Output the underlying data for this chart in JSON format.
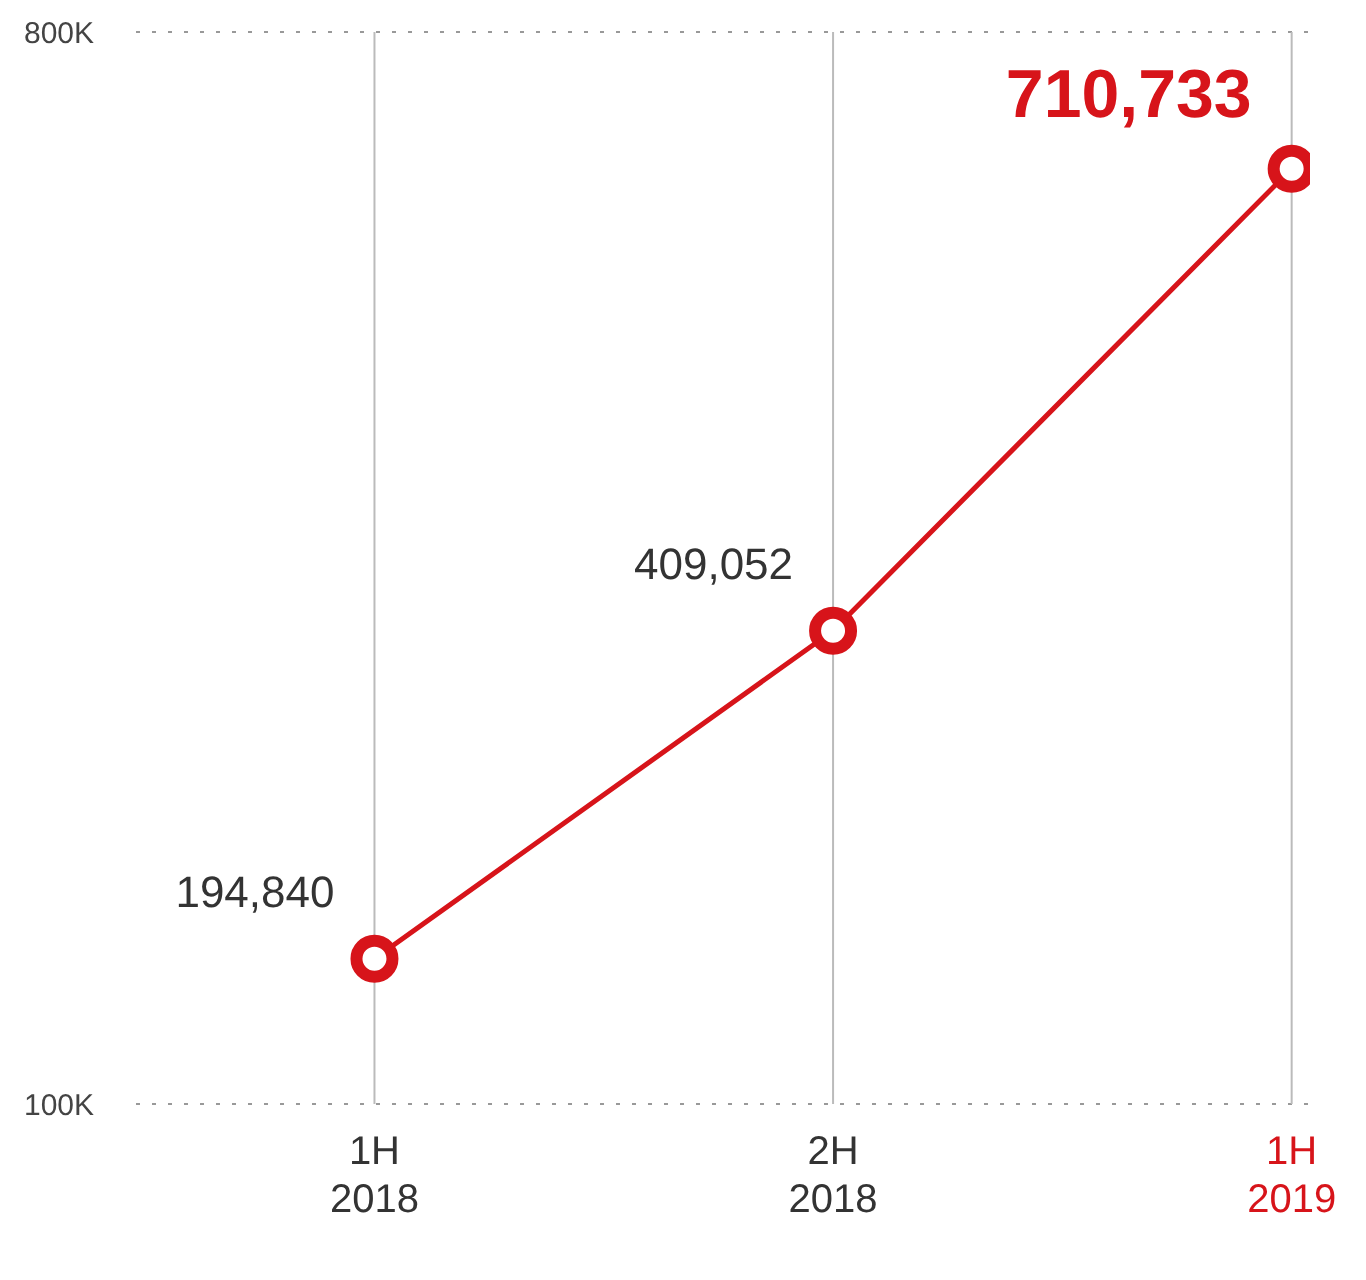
{
  "chart_data": {
    "type": "line",
    "categories": [
      "1H 2018",
      "2H 2018",
      "1H 2019"
    ],
    "series": [
      {
        "color": "#d7141a",
        "values": [
          194840,
          409052,
          710733
        ]
      }
    ],
    "value_labels": [
      "194,840",
      "409,052",
      "710,733"
    ],
    "ylim": [
      100000,
      800000
    ],
    "yticks": [
      {
        "value": 100000,
        "label": "100K"
      },
      {
        "value": 800000,
        "label": "800K"
      }
    ],
    "grid": true,
    "marker": "circle",
    "line_style": "solid"
  }
}
